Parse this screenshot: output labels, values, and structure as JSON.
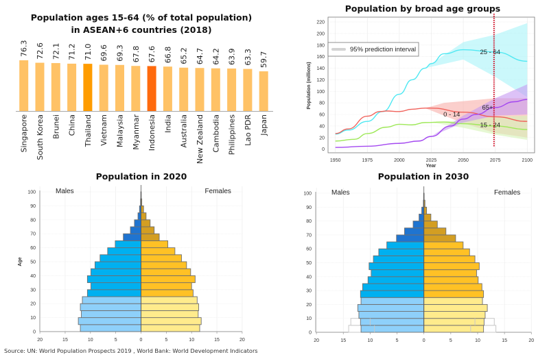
{
  "source": "Source: UN: World Population Prospects 2019 , World Bank: World Development Indicators",
  "chart_data": [
    {
      "id": "bar",
      "type": "bar",
      "title_lines": [
        "Population ages 15-64 (% of total population)",
        "in ASEAN+6 countries (2018)"
      ],
      "categories": [
        "Singapore",
        "South Korea",
        "Brunei",
        "China",
        "Thailand",
        "Vietnam",
        "Malaysia",
        "Myanmar",
        "Indonesia",
        "India",
        "Australia",
        "New Zealand",
        "Cambodia",
        "Philippines",
        "Lao PDR",
        "Japan"
      ],
      "values": [
        76.3,
        72.6,
        72.1,
        71.2,
        71.0,
        69.6,
        69.3,
        67.8,
        67.6,
        66.8,
        65.2,
        64.7,
        64.2,
        63.9,
        63.3,
        59.7
      ],
      "value_labels": [
        "76.3",
        "72.6",
        "72.1",
        "71.2",
        "71.0",
        "69.6",
        "69.3",
        "67.8",
        "67.6",
        "66.8",
        "65.2",
        "64.7",
        "64.2",
        "63.9",
        "63.3",
        "59.7"
      ],
      "highlight": {
        "Thailand": "#FF9C00",
        "Indonesia": "#FF6A0D"
      },
      "default_color": "#FFC266",
      "ylim": [
        0,
        80
      ],
      "xlabel": "",
      "ylabel": ""
    },
    {
      "id": "line",
      "type": "line",
      "title": "Population by broad age groups",
      "xlabel": "Year",
      "ylabel": "Population (millions)",
      "xlim": [
        1950,
        2100
      ],
      "ylim": [
        0,
        220
      ],
      "xticks": [
        1950,
        1975,
        2000,
        2025,
        2050,
        2075,
        2100
      ],
      "yticks": [
        0,
        20,
        40,
        60,
        80,
        100,
        120,
        140,
        160,
        180,
        200,
        220
      ],
      "grid": true,
      "legend": {
        "label": "95% prediction interval",
        "position": "top-left"
      },
      "marker_line": {
        "x": 2074,
        "color": "#D0021B",
        "style": "dotted"
      },
      "series": [
        {
          "name": "25 - 64",
          "color": "#4FE8F2",
          "band_color": "#A8F4F8",
          "x": [
            1950,
            1960,
            1975,
            1987,
            2000,
            2010,
            2020,
            2025,
            2035,
            2050,
            2075,
            2100
          ],
          "y": [
            26,
            33,
            48,
            65,
            95,
            120,
            140,
            148,
            165,
            172,
            168,
            152
          ],
          "band": {
            "x": [
              2020,
              2050,
              2075,
              2100
            ],
            "upper": [
              140,
              185,
              198,
              218
            ],
            "lower": [
              140,
              155,
              125,
              90
            ]
          },
          "label_at": [
            2071,
            168
          ]
        },
        {
          "name": "0 - 14",
          "color": "#F0615A",
          "band_color": "#F8AFAA",
          "x": [
            1950,
            1960,
            1975,
            1985,
            1990,
            2000,
            2010,
            2020,
            2025,
            2050,
            2075,
            2100
          ],
          "y": [
            27,
            35,
            57,
            65,
            66,
            65,
            69,
            71,
            71,
            64,
            56,
            48
          ],
          "band": {
            "x": [
              2020,
              2035,
              2050,
              2075,
              2100
            ],
            "upper": [
              71,
              80,
              83,
              88,
              88
            ],
            "lower": [
              71,
              58,
              45,
              28,
              20
            ]
          },
          "label_at": [
            2041,
            60
          ]
        },
        {
          "name": "15 - 24",
          "color": "#9EE858",
          "band_color": "#D6F3B6",
          "x": [
            1950,
            1965,
            1975,
            1990,
            2000,
            2010,
            2020,
            2035,
            2050,
            2075,
            2100
          ],
          "y": [
            14,
            17,
            27,
            38,
            43,
            42,
            46,
            47,
            44,
            40,
            34
          ],
          "band": {
            "x": [
              2025,
              2050,
              2075,
              2100
            ],
            "upper": [
              46,
              50,
              56,
              58
            ],
            "lower": [
              46,
              37,
              25,
              16
            ]
          },
          "label_at": [
            2071,
            42
          ]
        },
        {
          "name": "65+",
          "color": "#A347F0",
          "band_color": "#C79AF2",
          "x": [
            1950,
            1975,
            2000,
            2015,
            2025,
            2040,
            2050,
            2060,
            2075,
            2090,
            2100
          ],
          "y": [
            3,
            5,
            10,
            14,
            22,
            40,
            52,
            60,
            72,
            82,
            86
          ],
          "band": {
            "x": [
              2025,
              2050,
              2075,
              2100
            ],
            "upper": [
              22,
              58,
              88,
              112
            ],
            "lower": [
              22,
              46,
              58,
              60
            ]
          },
          "label_at": [
            2069,
            72
          ]
        }
      ]
    },
    {
      "id": "pyr2020",
      "type": "bar",
      "subtype": "population-pyramid",
      "title": "Population in 2020",
      "left_label": "Males",
      "right_label": "Females",
      "ylabel": "Age",
      "xlim": [
        20,
        20
      ],
      "xticks": [
        20,
        15,
        10,
        5,
        0,
        5,
        10,
        15,
        20
      ],
      "yticks": [
        0,
        10,
        20,
        30,
        40,
        50,
        60,
        70,
        80,
        90,
        100
      ],
      "age_groups": [
        "0-4",
        "5-9",
        "10-14",
        "15-19",
        "20-24",
        "25-29",
        "30-34",
        "35-39",
        "40-44",
        "45-49",
        "50-54",
        "55-59",
        "60-64",
        "65-69",
        "70-74",
        "75-79",
        "80-84",
        "85-89",
        "90-94",
        "95-99"
      ],
      "males": [
        12.0,
        12.4,
        11.8,
        12.0,
        11.6,
        10.6,
        9.9,
        10.6,
        9.9,
        9.1,
        8.1,
        6.6,
        5.1,
        3.5,
        2.1,
        1.3,
        0.6,
        0.3,
        0.1,
        0.05
      ],
      "females": [
        11.6,
        11.9,
        11.3,
        11.4,
        11.1,
        10.3,
        10.0,
        10.7,
        9.8,
        9.0,
        8.0,
        6.7,
        5.3,
        3.6,
        2.6,
        1.8,
        1.0,
        0.5,
        0.15,
        0.05
      ],
      "colors": {
        "male_young": "#8ED0FA",
        "male_work": "#00B0F0",
        "male_old": "#1F74D0",
        "female_young": "#FFEB8C",
        "female_work": "#FFC125",
        "female_old": "#D39E22"
      }
    },
    {
      "id": "pyr2030",
      "type": "bar",
      "subtype": "population-pyramid",
      "title": "Population in 2030",
      "left_label": "Males",
      "right_label": "Females",
      "ylabel": "",
      "xlim": [
        20,
        20
      ],
      "xticks": [
        20,
        15,
        10,
        5,
        0,
        5,
        10,
        15,
        20
      ],
      "yticks": [
        0,
        10,
        20,
        30,
        40,
        50,
        60,
        70,
        80,
        90,
        100
      ],
      "age_groups": [
        "0-4",
        "5-9",
        "10-14",
        "15-19",
        "20-24",
        "25-29",
        "30-34",
        "35-39",
        "40-44",
        "45-49",
        "50-54",
        "55-59",
        "60-64",
        "65-69",
        "70-74",
        "75-79",
        "80-84",
        "85-89",
        "90-94",
        "95-99"
      ],
      "males": [
        11.7,
        11.8,
        12.1,
        12.3,
        11.7,
        11.8,
        11.4,
        10.4,
        9.8,
        10.2,
        9.4,
        8.4,
        6.9,
        5.1,
        3.6,
        2.0,
        0.9,
        0.4,
        0.1,
        0.05
      ],
      "females": [
        11.1,
        11.2,
        11.4,
        11.8,
        10.9,
        11.1,
        10.8,
        10.1,
        9.8,
        10.3,
        9.5,
        8.5,
        7.3,
        5.9,
        4.1,
        2.5,
        1.3,
        0.5,
        0.2,
        0.05
      ],
      "outline_high": {
        "males": [
          14.0,
          13.6
        ],
        "females": [
          13.4,
          13.1
        ]
      },
      "outline_low": {
        "males": [
          9.2,
          10.0
        ],
        "females": [
          8.7,
          9.5
        ]
      },
      "colors": {
        "male_young": "#8ED0FA",
        "male_work": "#00B0F0",
        "male_old": "#1F74D0",
        "female_young": "#FFEB8C",
        "female_work": "#FFC125",
        "female_old": "#D39E22"
      }
    }
  ]
}
